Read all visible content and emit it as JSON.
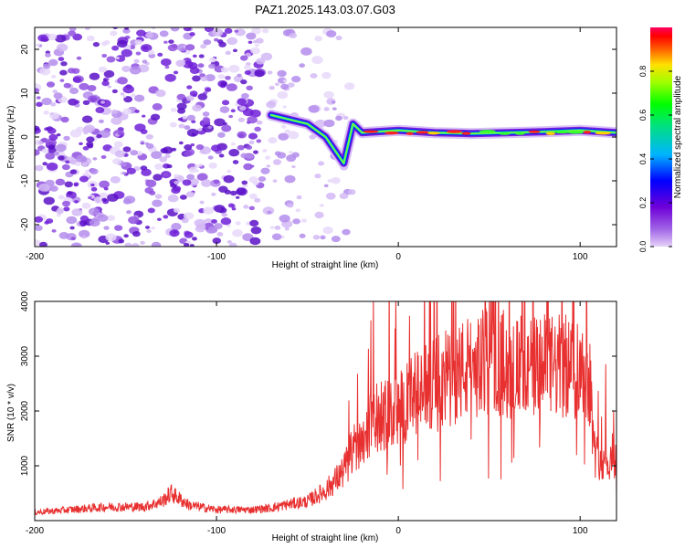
{
  "title": "PAZ1.2025.143.03.07.G03",
  "chart_data": [
    {
      "type": "heatmap",
      "xlabel": "Height of straight line (km)",
      "ylabel": "Frequency (Hz)",
      "xlim": [
        -200,
        120
      ],
      "ylim": [
        -25,
        25
      ],
      "x_ticks": [
        -200,
        -100,
        0,
        100
      ],
      "y_ticks": [
        -20,
        -10,
        0,
        10,
        20
      ],
      "colorbar": {
        "label": "Normalized spectral amplitude",
        "range": [
          0,
          1
        ],
        "ticks": [
          0.0,
          0.2,
          0.4,
          0.6,
          0.8
        ],
        "colormap": "rainbow (violet-blue-cyan-green-yellow-red-magenta)"
      },
      "features": {
        "noise_region_x": [
          -200,
          -40
        ],
        "signal_track": [
          {
            "x": -70,
            "y": 5
          },
          {
            "x": -60,
            "y": 4
          },
          {
            "x": -50,
            "y": 3
          },
          {
            "x": -40,
            "y": 0
          },
          {
            "x": -30,
            "y": -6
          },
          {
            "x": -25,
            "y": 3
          },
          {
            "x": -20,
            "y": 1
          },
          {
            "x": 0,
            "y": 1.5
          },
          {
            "x": 20,
            "y": 1
          },
          {
            "x": 40,
            "y": 0.8
          },
          {
            "x": 60,
            "y": 1
          },
          {
            "x": 80,
            "y": 1.2
          },
          {
            "x": 100,
            "y": 1.5
          },
          {
            "x": 120,
            "y": 1
          }
        ]
      }
    },
    {
      "type": "line",
      "xlabel": "Height of straight line (km)",
      "ylabel": "SNR (10 * v/v)",
      "xlim": [
        -200,
        120
      ],
      "ylim": [
        0,
        4000
      ],
      "x_ticks": [
        -200,
        -100,
        0,
        100
      ],
      "y_ticks": [
        1000,
        2000,
        3000,
        4000
      ],
      "series": [
        {
          "color": "#e83030",
          "x": [
            -200,
            -180,
            -160,
            -140,
            -130,
            -125,
            -115,
            -100,
            -80,
            -70,
            -60,
            -50,
            -40,
            -30,
            -25,
            -20,
            -15,
            -10,
            -5,
            0,
            10,
            20,
            30,
            40,
            50,
            60,
            70,
            80,
            90,
            100,
            105,
            108,
            112,
            120
          ],
          "y": [
            150,
            200,
            250,
            250,
            350,
            500,
            280,
            200,
            200,
            230,
            300,
            350,
            550,
            900,
            1300,
            1500,
            1800,
            1900,
            1950,
            2000,
            2300,
            2500,
            2650,
            2800,
            2900,
            2850,
            2750,
            2800,
            2800,
            2800,
            2700,
            1200,
            1100,
            1100
          ]
        }
      ]
    }
  ]
}
